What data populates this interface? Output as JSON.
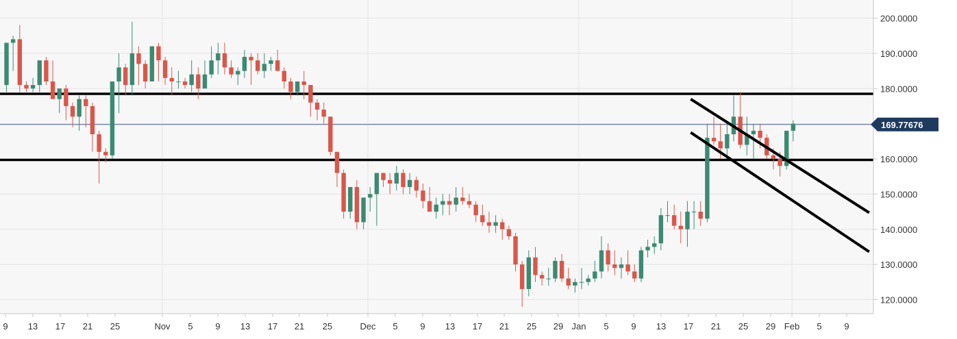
{
  "chart_data": {
    "type": "candlestick",
    "y_axis": {
      "ticks": [
        "200.0000",
        "190.0000",
        "180.0000",
        "170.0000",
        "160.0000",
        "150.0000",
        "140.0000",
        "130.0000",
        "120.0000"
      ],
      "tick_values": [
        200,
        190,
        180,
        170,
        160,
        150,
        140,
        130,
        120
      ],
      "ylim": [
        116,
        203
      ],
      "position": "right"
    },
    "x_axis": {
      "labels": [
        "9",
        "13",
        "17",
        "21",
        "25",
        "Nov",
        "5",
        "9",
        "13",
        "17",
        "21",
        "25",
        "Dec",
        "5",
        "9",
        "13",
        "17",
        "21",
        "25",
        "29",
        "Jan",
        "5",
        "9",
        "13",
        "17",
        "21",
        "25",
        "29",
        "Feb",
        "5",
        "9"
      ],
      "month_starts": [
        "Nov",
        "Dec",
        "Jan",
        "Feb"
      ]
    },
    "last_price": {
      "label": "169.77676",
      "value": 169.77676
    },
    "horizontal_levels": [
      178.5,
      159.7
    ],
    "trend_lines": [
      {
        "from": [
          "Jan 16",
          177.0
        ],
        "to": [
          "Feb 10",
          144.7
        ]
      },
      {
        "from": [
          "Jan 16",
          167.5
        ],
        "to": [
          "Feb 10",
          133.6
        ]
      }
    ],
    "candles_ohlc": [
      [
        181,
        188,
        179,
        193
      ],
      [
        193,
        195,
        185,
        194
      ],
      [
        194,
        198,
        179,
        181
      ],
      [
        181,
        182,
        179,
        180
      ],
      [
        180,
        183,
        179,
        181
      ],
      [
        181,
        183,
        179,
        188
      ],
      [
        188,
        189,
        181,
        182
      ],
      [
        182,
        188,
        179,
        177
      ],
      [
        177,
        179,
        173,
        180
      ],
      [
        180,
        181,
        171,
        175
      ],
      [
        175,
        176,
        169,
        172
      ],
      [
        172,
        178,
        168,
        177
      ],
      [
        177,
        178,
        169,
        175
      ],
      [
        175,
        176,
        162,
        167
      ],
      [
        167,
        168,
        153,
        162
      ],
      [
        162,
        163,
        159,
        161
      ],
      [
        161,
        182,
        160,
        182
      ],
      [
        182,
        190,
        173,
        186
      ],
      [
        186,
        187,
        178,
        181
      ],
      [
        181,
        199,
        178,
        190
      ],
      [
        190,
        192,
        181,
        187
      ],
      [
        187,
        188,
        180,
        182
      ],
      [
        182,
        192,
        183,
        192
      ],
      [
        192,
        193,
        182,
        188
      ],
      [
        188,
        189,
        181,
        183
      ],
      [
        183,
        186,
        178,
        182
      ],
      [
        182,
        185,
        180,
        182
      ],
      [
        182,
        183,
        180,
        181
      ],
      [
        181,
        188,
        179,
        184
      ],
      [
        184,
        186,
        177,
        180
      ],
      [
        180,
        188,
        181,
        184
      ],
      [
        184,
        192,
        183,
        188
      ],
      [
        188,
        193,
        184,
        190
      ],
      [
        190,
        193,
        184,
        186
      ],
      [
        186,
        188,
        183,
        184
      ],
      [
        184,
        186,
        181,
        185
      ],
      [
        185,
        191,
        183,
        189
      ],
      [
        189,
        190,
        181,
        188
      ],
      [
        188,
        190,
        184,
        185
      ],
      [
        185,
        190,
        183,
        187
      ],
      [
        187,
        189,
        185,
        188
      ],
      [
        188,
        191,
        186,
        185
      ],
      [
        185,
        186,
        180,
        182
      ],
      [
        182,
        183,
        177,
        179
      ],
      [
        179,
        182,
        178,
        182
      ],
      [
        182,
        185,
        177,
        181
      ],
      [
        181,
        181,
        172,
        176
      ],
      [
        176,
        177,
        171,
        174
      ],
      [
        174,
        176,
        170,
        172
      ],
      [
        172,
        172,
        161,
        162
      ],
      [
        162,
        162,
        152,
        156
      ],
      [
        156,
        157,
        143,
        145
      ],
      [
        145,
        150,
        143,
        152
      ],
      [
        152,
        154,
        140,
        142
      ],
      [
        142,
        148,
        140,
        149
      ],
      [
        149,
        152,
        145,
        150
      ],
      [
        150,
        156,
        141,
        156
      ],
      [
        156,
        156,
        152,
        154
      ],
      [
        154,
        156,
        150,
        153
      ],
      [
        153,
        158,
        151,
        156
      ],
      [
        156,
        157,
        150,
        152
      ],
      [
        152,
        156,
        150,
        154
      ],
      [
        154,
        155,
        149,
        151
      ],
      [
        151,
        153,
        146,
        148
      ],
      [
        148,
        152,
        145,
        145
      ],
      [
        145,
        149,
        143,
        147
      ],
      [
        147,
        150,
        144,
        148
      ],
      [
        148,
        150,
        144,
        147
      ],
      [
        147,
        152,
        145,
        149
      ],
      [
        149,
        152,
        147,
        148
      ],
      [
        148,
        150,
        146,
        147
      ],
      [
        147,
        148,
        142,
        144
      ],
      [
        144,
        147,
        141,
        142
      ],
      [
        142,
        145,
        139,
        141
      ],
      [
        141,
        144,
        139,
        142
      ],
      [
        142,
        143,
        137,
        140
      ],
      [
        140,
        141,
        137,
        138
      ],
      [
        138,
        139,
        128,
        130
      ],
      [
        130,
        131,
        118,
        123
      ],
      [
        123,
        134,
        121,
        132
      ],
      [
        132,
        135,
        125,
        127
      ],
      [
        127,
        128,
        124,
        126
      ],
      [
        126,
        129,
        124,
        126
      ],
      [
        126,
        132,
        125,
        131
      ],
      [
        131,
        133,
        125,
        126
      ],
      [
        126,
        129,
        123,
        124
      ],
      [
        124,
        126,
        122,
        125
      ],
      [
        125,
        129,
        123,
        125
      ],
      [
        125,
        127,
        124,
        126
      ],
      [
        126,
        131,
        125,
        128
      ],
      [
        128,
        138,
        126,
        134
      ],
      [
        134,
        136,
        128,
        130
      ],
      [
        130,
        134,
        127,
        129
      ],
      [
        129,
        132,
        126,
        130
      ],
      [
        130,
        134,
        127,
        128
      ],
      [
        128,
        130,
        125,
        126
      ],
      [
        126,
        135,
        125,
        134
      ],
      [
        134,
        137,
        132,
        135
      ],
      [
        135,
        138,
        133,
        136
      ],
      [
        136,
        146,
        134,
        144
      ],
      [
        144,
        148,
        142,
        144
      ],
      [
        144,
        147,
        140,
        141
      ],
      [
        141,
        145,
        136,
        140
      ],
      [
        140,
        148,
        135,
        145
      ],
      [
        145,
        148,
        140,
        145
      ],
      [
        145,
        148,
        141,
        143
      ],
      [
        143,
        170,
        142,
        166
      ],
      [
        166,
        172,
        164,
        165
      ],
      [
        165,
        170,
        160,
        163
      ],
      [
        163,
        170,
        160,
        167
      ],
      [
        167,
        178,
        165,
        172
      ],
      [
        172,
        179,
        163,
        164
      ],
      [
        164,
        172,
        161,
        167
      ],
      [
        167,
        170,
        160,
        168
      ],
      [
        168,
        170,
        163,
        166
      ],
      [
        166,
        167,
        160,
        161
      ],
      [
        161,
        163,
        157,
        160
      ],
      [
        160,
        162,
        155,
        158
      ],
      [
        158,
        168,
        157,
        168
      ],
      [
        168,
        171,
        165,
        170
      ]
    ]
  }
}
